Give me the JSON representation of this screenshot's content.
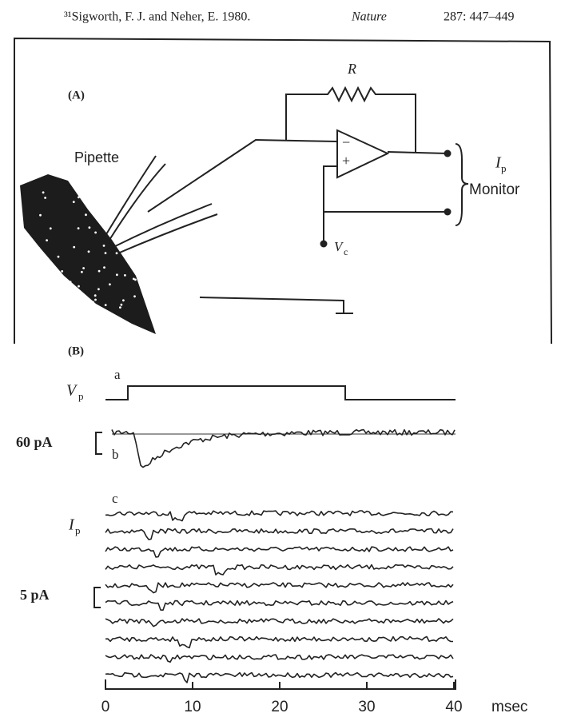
{
  "citation": {
    "text": "³¹Sigworth, F. J. and Neher, E. 1980.",
    "journal": "Nature",
    "ref": "287: 447–449"
  },
  "figure": {
    "panel_a": "(A)",
    "resistor": "R",
    "pipette": "Pipette",
    "minus": "−",
    "plus": "+",
    "ip": "I",
    "ip_sub": "p",
    "monitor": "Monitor",
    "vc": "V",
    "vc_sub": "c",
    "panel_b": "(B)",
    "trace_a": "a",
    "vp": "V",
    "vp_sub": "p",
    "scale_60": "60 pA",
    "trace_b": "b",
    "trace_c": "c",
    "ip2": "I",
    "ip2_sub": "p",
    "scale_5": "5 pA",
    "xticks": [
      "0",
      "10",
      "20",
      "30",
      "40"
    ],
    "xunit": "msec"
  }
}
